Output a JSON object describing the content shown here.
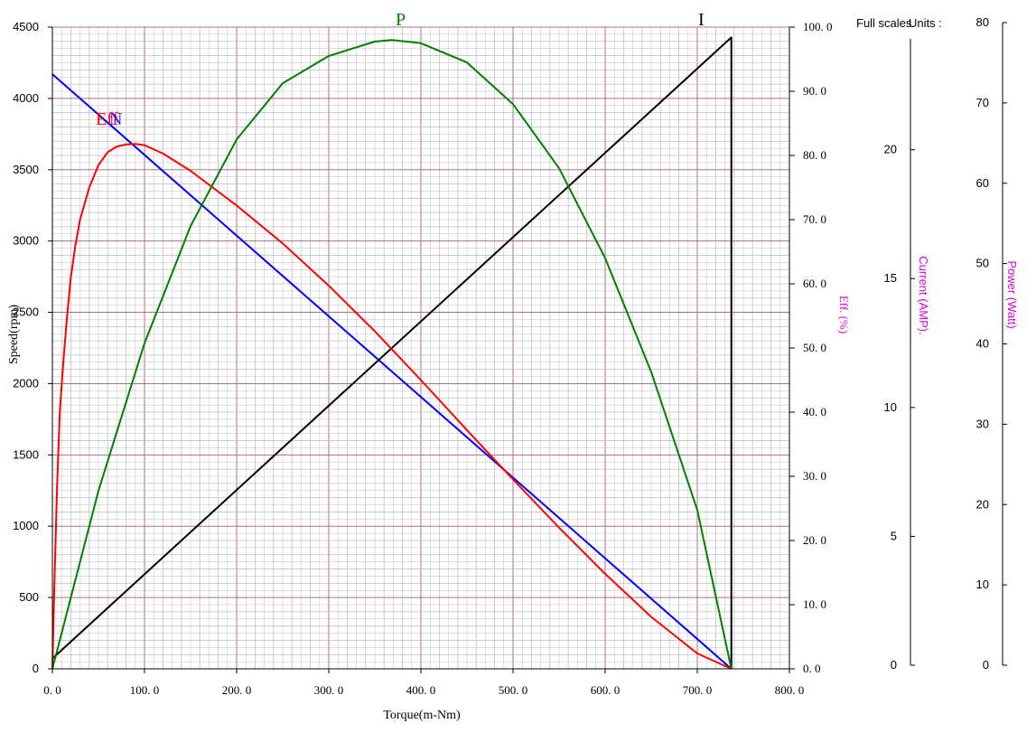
{
  "chart_data": {
    "type": "line",
    "xlabel": "Torque(m-Nm)",
    "xlim": [
      0,
      800
    ],
    "x_ticks": [
      "0. 0",
      "100. 0",
      "200. 0",
      "300. 0",
      "400. 0",
      "500. 0",
      "600. 0",
      "700. 0",
      "800. 0"
    ],
    "axes": {
      "speed": {
        "label": "Speed(rpm)",
        "range": [
          0,
          4500
        ],
        "ticks": [
          "0",
          "500",
          "1000",
          "1500",
          "2000",
          "2500",
          "3000",
          "3500",
          "4000",
          "4500"
        ]
      },
      "efficiency": {
        "label": "Eff. (%)",
        "range": [
          0,
          100
        ],
        "ticks": [
          "0. 0",
          "10. 0",
          "20. 0",
          "30. 0",
          "40. 0",
          "50. 0",
          "60. 0",
          "70. 0",
          "80. 0",
          "90. 0",
          "100. 0"
        ]
      },
      "current": {
        "label": "Current (AMP).",
        "range": [
          0,
          25
        ],
        "ticks": [
          "0",
          "5",
          "10",
          "15",
          "20"
        ]
      },
      "power": {
        "label": "Power (Watt)",
        "range": [
          0,
          80
        ],
        "ticks": [
          "0",
          "10",
          "20",
          "30",
          "40",
          "50",
          "60",
          "70",
          "80"
        ]
      }
    },
    "header": {
      "full_scales": "Full scales",
      "units": "Units :"
    },
    "series": [
      {
        "name": "N",
        "axis": "speed",
        "color": "#0000ff",
        "x": [
          0,
          737
        ],
        "y": [
          4170,
          0
        ]
      },
      {
        "name": "I",
        "axis": "current",
        "color": "#000000",
        "x": [
          0,
          737,
          737
        ],
        "y": [
          0.4,
          24.6,
          0
        ]
      },
      {
        "name": "Eff",
        "axis": "efficiency",
        "color": "#ff0000",
        "x": [
          0,
          2,
          5,
          8,
          12,
          16,
          20,
          25,
          30,
          40,
          50,
          60,
          70,
          80,
          90,
          100,
          120,
          150,
          200,
          250,
          300,
          350,
          400,
          450,
          500,
          550,
          600,
          650,
          700,
          737
        ],
        "y": [
          0,
          12,
          28,
          40,
          48,
          55,
          61,
          66,
          70,
          75,
          78.5,
          80.5,
          81.4,
          81.7,
          81.8,
          81.6,
          80.3,
          77.6,
          72.2,
          66.3,
          59.7,
          52.6,
          45.0,
          37.2,
          29.5,
          22.0,
          14.8,
          8.1,
          2.4,
          0
        ]
      },
      {
        "name": "P",
        "axis": "power",
        "color": "#008000",
        "x": [
          0,
          50,
          100,
          150,
          200,
          250,
          300,
          350,
          368.5,
          400,
          450,
          500,
          550,
          600,
          650,
          700,
          737
        ],
        "y": [
          0,
          22.2,
          40.6,
          55.2,
          66.0,
          73.0,
          76.4,
          78.2,
          78.4,
          78.0,
          75.6,
          70.4,
          62.4,
          51.2,
          37.0,
          19.8,
          0
        ]
      }
    ],
    "curve_labels": {
      "p": "P",
      "i": "I",
      "eff": "Eff",
      "n": "N"
    },
    "grid": true,
    "colors": {
      "grid": "#c0c0c8",
      "major_grid": "#b07080",
      "axis": "#000000",
      "speed": "#0000ff",
      "eff": "#ff0000",
      "current": "#000000",
      "power": "#008000",
      "secondary_label": "#e000e0"
    }
  }
}
